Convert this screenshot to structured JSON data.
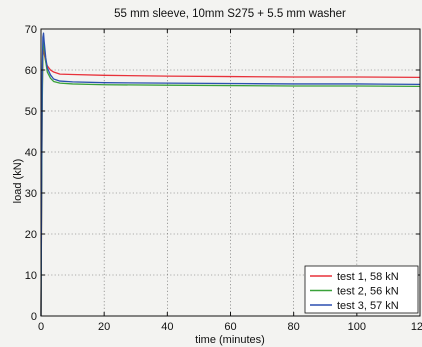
{
  "chart_data": {
    "type": "line",
    "title": "55 mm sleeve, 10mm S275 + 5.5 mm washer",
    "xlabel": "time (minutes)",
    "ylabel": "load (kN)",
    "xlim": [
      0,
      120
    ],
    "ylim": [
      0,
      70
    ],
    "xticks": [
      0,
      20,
      40,
      60,
      80,
      100,
      120
    ],
    "yticks": [
      0,
      10,
      20,
      30,
      40,
      50,
      60,
      70
    ],
    "grid": true,
    "legend_position": "bottom-right",
    "series": [
      {
        "name": "test 1, 58 kN",
        "color": "#e8313a",
        "points": [
          [
            0,
            0
          ],
          [
            0.2,
            30
          ],
          [
            0.4,
            55
          ],
          [
            0.6,
            64
          ],
          [
            0.8,
            65
          ],
          [
            1,
            64
          ],
          [
            1.5,
            62
          ],
          [
            2,
            61
          ],
          [
            3,
            60
          ],
          [
            4,
            59.5
          ],
          [
            6,
            59
          ],
          [
            10,
            58.9
          ],
          [
            20,
            58.7
          ],
          [
            40,
            58.5
          ],
          [
            60,
            58.4
          ],
          [
            80,
            58.3
          ],
          [
            100,
            58.3
          ],
          [
            120,
            58.2
          ]
        ]
      },
      {
        "name": "test 2, 56 kN",
        "color": "#3aa23a",
        "points": [
          [
            0,
            0
          ],
          [
            0.2,
            30
          ],
          [
            0.4,
            52
          ],
          [
            0.6,
            64
          ],
          [
            0.8,
            67
          ],
          [
            1,
            66
          ],
          [
            1.5,
            62
          ],
          [
            2,
            59.5
          ],
          [
            3,
            58
          ],
          [
            4,
            57.2
          ],
          [
            6,
            56.8
          ],
          [
            10,
            56.6
          ],
          [
            20,
            56.4
          ],
          [
            40,
            56.3
          ],
          [
            60,
            56.2
          ],
          [
            80,
            56.1
          ],
          [
            100,
            56.1
          ],
          [
            120,
            56
          ]
        ]
      },
      {
        "name": "test 3, 57 kN",
        "color": "#2b4fb0",
        "points": [
          [
            0,
            0
          ],
          [
            0.2,
            35
          ],
          [
            0.4,
            60
          ],
          [
            0.6,
            68
          ],
          [
            0.8,
            69
          ],
          [
            1,
            67
          ],
          [
            1.5,
            63
          ],
          [
            2,
            60.5
          ],
          [
            3,
            58.8
          ],
          [
            4,
            57.8
          ],
          [
            6,
            57.3
          ],
          [
            10,
            57.1
          ],
          [
            20,
            56.9
          ],
          [
            40,
            56.8
          ],
          [
            60,
            56.7
          ],
          [
            80,
            56.6
          ],
          [
            100,
            56.6
          ],
          [
            120,
            56.5
          ]
        ]
      }
    ]
  }
}
